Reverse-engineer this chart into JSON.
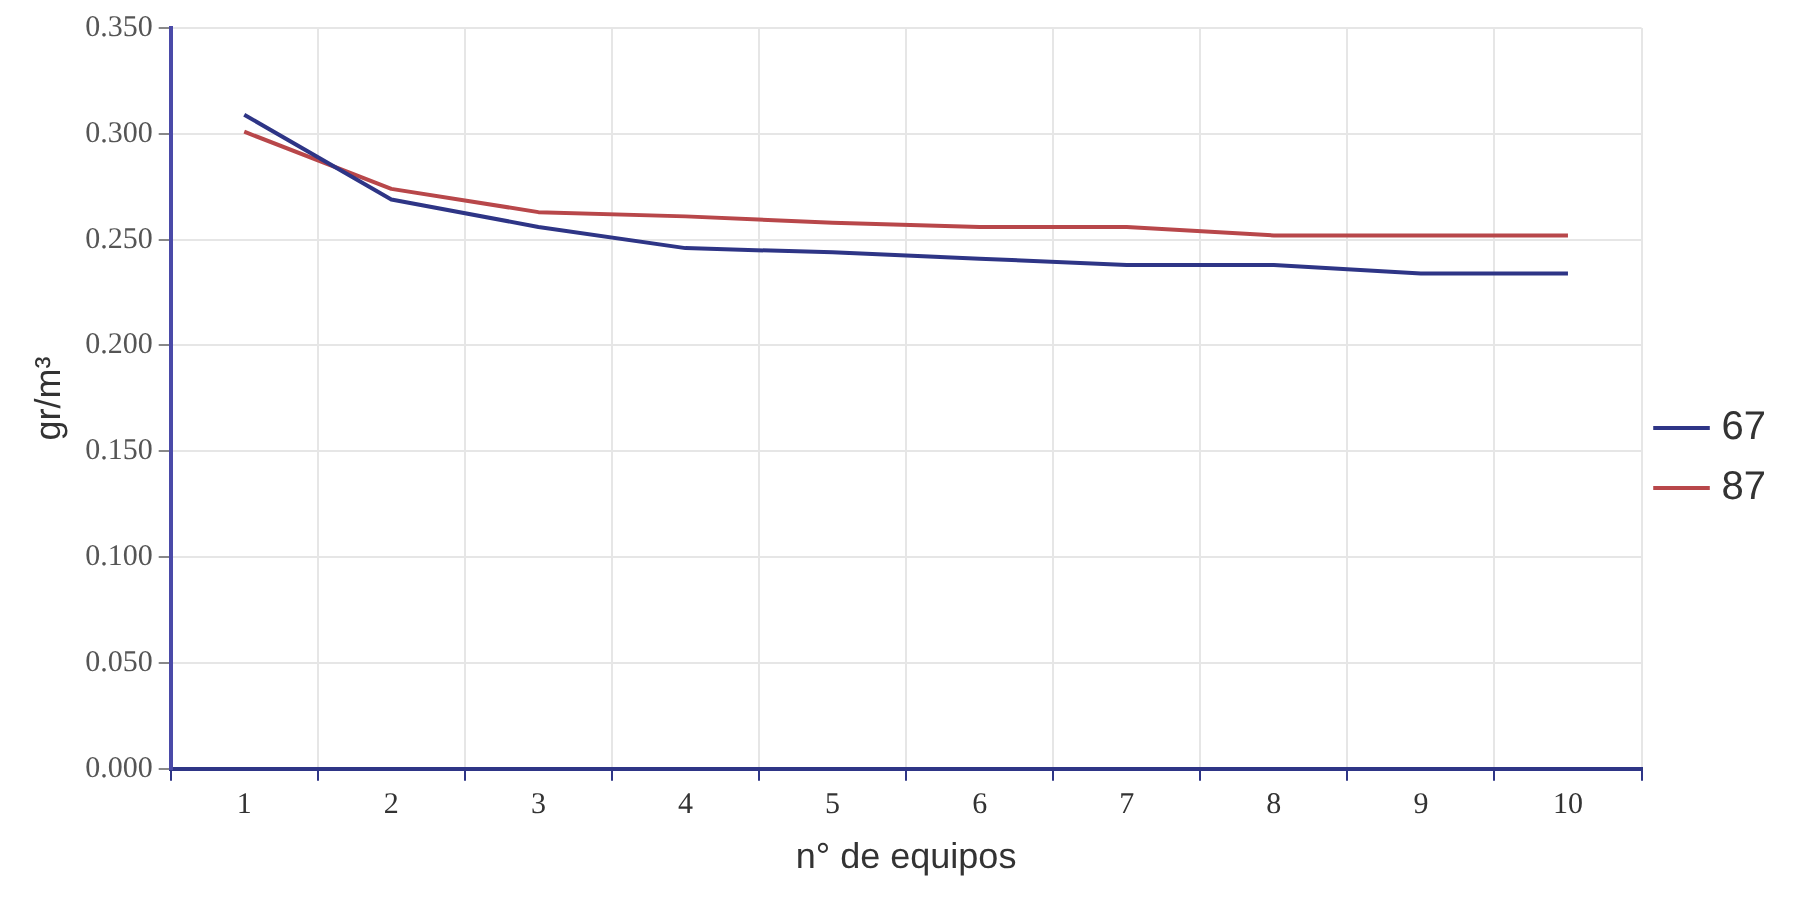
{
  "chart_data": {
    "type": "line",
    "xlabel": "n° de equipos",
    "ylabel": "gr/m³",
    "categories": [
      "1",
      "2",
      "3",
      "4",
      "5",
      "6",
      "7",
      "8",
      "9",
      "10"
    ],
    "series": [
      {
        "name": "67",
        "color": "#2e3586",
        "values": [
          0.309,
          0.269,
          0.256,
          0.246,
          0.244,
          0.241,
          0.238,
          0.238,
          0.234,
          0.234
        ]
      },
      {
        "name": "87",
        "color": "#b8474a",
        "values": [
          0.301,
          0.274,
          0.263,
          0.261,
          0.258,
          0.256,
          0.256,
          0.252,
          0.252,
          0.252
        ]
      }
    ],
    "ylim": [
      0,
      0.35
    ],
    "yticks": [
      {
        "value": 0,
        "label": "0.000"
      },
      {
        "value": 0.05,
        "label": "0.050"
      },
      {
        "value": 0.1,
        "label": "0.100"
      },
      {
        "value": 0.15,
        "label": "0.150"
      },
      {
        "value": 0.2,
        "label": "0.200"
      },
      {
        "value": 0.25,
        "label": "0.250"
      },
      {
        "value": 0.3,
        "label": "0.300"
      },
      {
        "value": 0.35,
        "label": "0.350"
      }
    ],
    "grid": true,
    "legend": "right",
    "marker": "none",
    "line_style": "solid"
  }
}
